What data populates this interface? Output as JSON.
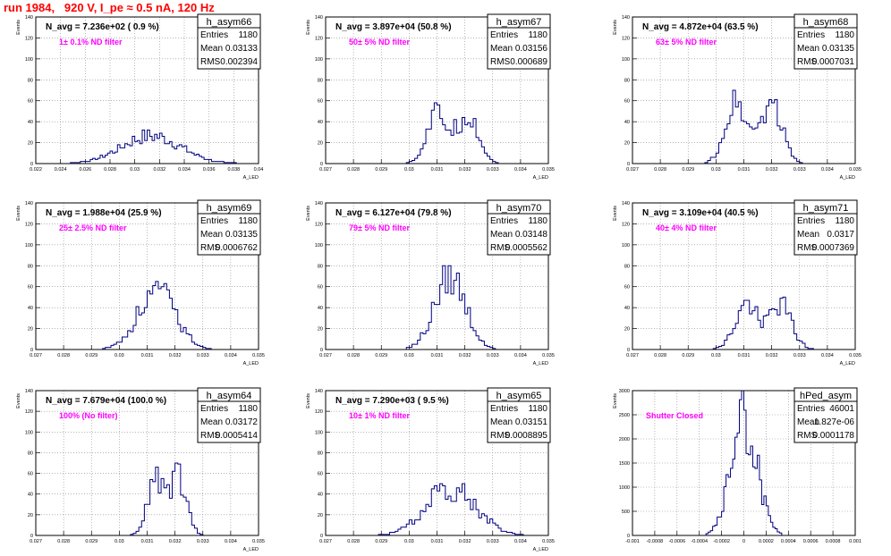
{
  "page": {
    "title": "run 1984,   920 V, I_pe ≈ 0.5 nA, 120 Hz"
  },
  "colors": {
    "title": "#ff0000",
    "annotation": "#ff00ff",
    "histogram": "#000080",
    "grid": "#888888",
    "frame": "#000000"
  },
  "chart_data": [
    {
      "type": "histogram",
      "name": "h_asym66",
      "stats": {
        "entries_label": "Entries",
        "entries": "1180",
        "mean_label": "Mean",
        "mean": "0.03133",
        "rms_label": "RMS",
        "rms": "0.002394"
      },
      "navg": "N_avg = 7.236e+02 ( 0.9 %)",
      "annotation": "1± 0.1% ND filter",
      "ylabel": "Events",
      "xlabel": "A_LED",
      "xlim": [
        0.022,
        0.04
      ],
      "ylim": [
        0,
        140
      ],
      "xticks": [
        "0.022",
        "0.024",
        "0.026",
        "0.028",
        "0.03",
        "0.032",
        "0.034",
        "0.036",
        "0.038",
        "0.04"
      ],
      "yticks": [
        "0",
        "20",
        "40",
        "60",
        "80",
        "100",
        "120",
        "140"
      ],
      "mean_val": 0.03133,
      "rms_val": 0.002394,
      "peak": 32,
      "shape": "single"
    },
    {
      "type": "histogram",
      "name": "h_asym67",
      "stats": {
        "entries_label": "Entries",
        "entries": "1180",
        "mean_label": "Mean",
        "mean": "0.03156",
        "rms_label": "RMS",
        "rms": "0.000689"
      },
      "navg": "N_avg = 3.897e+04 (50.8 %)",
      "annotation": "50± 5% ND filter",
      "ylabel": "Events",
      "xlabel": "A_LED",
      "xlim": [
        0.027,
        0.035
      ],
      "ylim": [
        0,
        140
      ],
      "xticks": [
        "0.027",
        "0.028",
        "0.029",
        "0.03",
        "0.031",
        "0.032",
        "0.033",
        "0.034",
        "0.035"
      ],
      "yticks": [
        "0",
        "20",
        "40",
        "60",
        "80",
        "100",
        "120",
        "140"
      ],
      "mean_val": 0.03156,
      "rms_val": 0.000689,
      "peak": 58,
      "shape": "double",
      "sep": 0.0011
    },
    {
      "type": "histogram",
      "name": "h_asym68",
      "stats": {
        "entries_label": "Entries",
        "entries": "1180",
        "mean_label": "Mean",
        "mean": "0.03135",
        "rms_label": "RMS",
        "rms": "0.0007031"
      },
      "navg": "N_avg = 4.872e+04 (63.5 %)",
      "annotation": "63± 5% ND filter",
      "ylabel": "Events",
      "xlabel": "A_LED",
      "xlim": [
        0.027,
        0.035
      ],
      "ylim": [
        0,
        140
      ],
      "xticks": [
        "0.027",
        "0.028",
        "0.029",
        "0.03",
        "0.031",
        "0.032",
        "0.033",
        "0.034",
        "0.035"
      ],
      "yticks": [
        "0",
        "20",
        "40",
        "60",
        "80",
        "100",
        "120",
        "140"
      ],
      "mean_val": 0.03135,
      "rms_val": 0.0007031,
      "peak": 70,
      "shape": "double",
      "sep": 0.00125
    },
    {
      "type": "histogram",
      "name": "h_asym69",
      "stats": {
        "entries_label": "Entries",
        "entries": "1180",
        "mean_label": "Mean",
        "mean": "0.03135",
        "rms_label": "RMS",
        "rms": "0.0006762"
      },
      "navg": "N_avg = 1.988e+04 (25.9 %)",
      "annotation": "25± 2.5% ND filter",
      "ylabel": "Events",
      "xlabel": "A_LED",
      "xlim": [
        0.027,
        0.035
      ],
      "ylim": [
        0,
        140
      ],
      "xticks": [
        "0.027",
        "0.028",
        "0.029",
        "0.03",
        "0.031",
        "0.032",
        "0.033",
        "0.034",
        "0.035"
      ],
      "yticks": [
        "0",
        "20",
        "40",
        "60",
        "80",
        "100",
        "120",
        "140"
      ],
      "mean_val": 0.03135,
      "rms_val": 0.0006762,
      "peak": 65,
      "shape": "single"
    },
    {
      "type": "histogram",
      "name": "h_asym70",
      "stats": {
        "entries_label": "Entries",
        "entries": "1180",
        "mean_label": "Mean",
        "mean": "0.03148",
        "rms_label": "RMS",
        "rms": "0.0005562"
      },
      "navg": "N_avg = 6.127e+04 (79.8 %)",
      "annotation": "79± 5% ND filter",
      "ylabel": "Events",
      "xlabel": "A_LED",
      "xlim": [
        0.027,
        0.035
      ],
      "ylim": [
        0,
        140
      ],
      "xticks": [
        "0.027",
        "0.028",
        "0.029",
        "0.03",
        "0.031",
        "0.032",
        "0.033",
        "0.034",
        "0.035"
      ],
      "yticks": [
        "0",
        "20",
        "40",
        "60",
        "80",
        "100",
        "120",
        "140"
      ],
      "mean_val": 0.03148,
      "rms_val": 0.0005562,
      "peak": 80,
      "shape": "single"
    },
    {
      "type": "histogram",
      "name": "h_asym71",
      "stats": {
        "entries_label": "Entries",
        "entries": "1180",
        "mean_label": "Mean",
        "mean": "0.0317",
        "rms_label": "RMS",
        "rms": "0.0007369"
      },
      "navg": "N_avg = 3.109e+04 (40.5 %)",
      "annotation": "40± 4% ND filter",
      "ylabel": "Events",
      "xlabel": "A_LED",
      "xlim": [
        0.027,
        0.035
      ],
      "ylim": [
        0,
        140
      ],
      "xticks": [
        "0.027",
        "0.028",
        "0.029",
        "0.03",
        "0.031",
        "0.032",
        "0.033",
        "0.034",
        "0.035"
      ],
      "yticks": [
        "0",
        "20",
        "40",
        "60",
        "80",
        "100",
        "120",
        "140"
      ],
      "mean_val": 0.0317,
      "rms_val": 0.0007369,
      "peak": 50,
      "shape": "double",
      "sep": 0.0012
    },
    {
      "type": "histogram",
      "name": "h_asym64",
      "stats": {
        "entries_label": "Entries",
        "entries": "1180",
        "mean_label": "Mean",
        "mean": "0.03172",
        "rms_label": "RMS",
        "rms": "0.0005414"
      },
      "navg": "N_avg = 7.679e+04 (100.0 %)",
      "annotation": "100% (No filter)",
      "ylabel": "Events",
      "xlabel": "A_LED",
      "xlim": [
        0.027,
        0.035
      ],
      "ylim": [
        0,
        140
      ],
      "xticks": [
        "0.027",
        "0.028",
        "0.029",
        "0.03",
        "0.031",
        "0.032",
        "0.033",
        "0.034",
        "0.035"
      ],
      "yticks": [
        "0",
        "20",
        "40",
        "60",
        "80",
        "100",
        "120",
        "140"
      ],
      "mean_val": 0.03172,
      "rms_val": 0.0005414,
      "peak": 70,
      "shape": "double",
      "sep": 0.0008
    },
    {
      "type": "histogram",
      "name": "h_asym65",
      "stats": {
        "entries_label": "Entries",
        "entries": "1180",
        "mean_label": "Mean",
        "mean": "0.03151",
        "rms_label": "RMS",
        "rms": "0.0008895"
      },
      "navg": "N_avg = 7.290e+03 ( 9.5 %)",
      "annotation": "10± 1% ND filter",
      "ylabel": "Events",
      "xlabel": "A_LED",
      "xlim": [
        0.027,
        0.035
      ],
      "ylim": [
        0,
        140
      ],
      "xticks": [
        "0.027",
        "0.028",
        "0.029",
        "0.03",
        "0.031",
        "0.032",
        "0.033",
        "0.034",
        "0.035"
      ],
      "yticks": [
        "0",
        "20",
        "40",
        "60",
        "80",
        "100",
        "120",
        "140"
      ],
      "mean_val": 0.03151,
      "rms_val": 0.0008895,
      "peak": 50,
      "shape": "single"
    },
    {
      "type": "histogram",
      "name": "hPed_asym",
      "stats": {
        "entries_label": "Entries",
        "entries": "46001",
        "mean_label": "Mean",
        "mean": "1.827e-06",
        "rms_label": "RMS",
        "rms": "0.0001178"
      },
      "navg": "",
      "annotation": "Shutter Closed",
      "ylabel": "Events",
      "xlabel": "",
      "xlim": [
        -0.001,
        0.001
      ],
      "ylim": [
        0,
        3000
      ],
      "xticks": [
        "-0.001",
        "-0.0008",
        "-0.0006",
        "-0.0004",
        "-0.0002",
        "0",
        "0.0002",
        "0.0004",
        "0.0006",
        "0.0008",
        "0.001"
      ],
      "yticks": [
        "0",
        "500",
        "1000",
        "1500",
        "2000",
        "2500",
        "3000"
      ],
      "mean_val": 1.827e-06,
      "rms_val": 0.0001178,
      "peak": 3000,
      "shape": "single"
    }
  ]
}
